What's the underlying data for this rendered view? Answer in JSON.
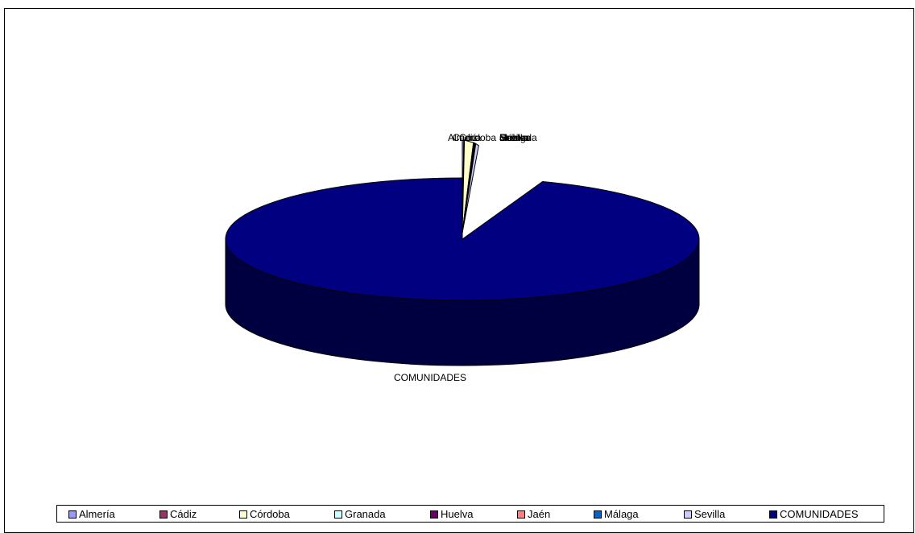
{
  "chart_data": {
    "type": "pie",
    "style": "3d-exploded",
    "categories": [
      "Almería",
      "Cádiz",
      "Córdoba",
      "Granada",
      "Huelva",
      "Jaén",
      "Málaga",
      "Sevilla",
      "COMUNIDADES"
    ],
    "values": [
      0.5,
      0.2,
      3.0,
      0.2,
      0.2,
      0.2,
      0.2,
      1.0,
      94.5
    ],
    "colors": [
      "#9999FF",
      "#993366",
      "#FFFFCC",
      "#CCFFFF",
      "#660066",
      "#FF8080",
      "#0066CC",
      "#CCCCFF",
      "#000080"
    ],
    "slice_labels": [
      "Almería",
      "Cádiz",
      "Córdoba",
      "Granada",
      "Huelva",
      "Jaén",
      "Málaga",
      "Sevilla",
      "COMUNIDADES"
    ],
    "legend_position": "bottom"
  },
  "legend": {
    "items": [
      "Almería",
      "Cádiz",
      "Córdoba",
      "Granada",
      "Huelva",
      "Jaén",
      "Málaga",
      "Sevilla",
      "COMUNIDADES"
    ]
  }
}
